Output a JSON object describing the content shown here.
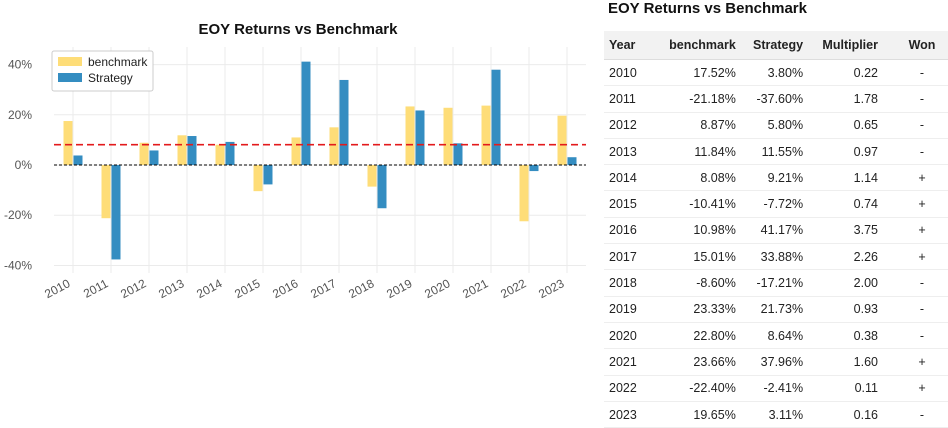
{
  "chart_data": {
    "type": "bar",
    "title": "EOY Returns  vs Benchmark",
    "categories": [
      "2010",
      "2011",
      "2012",
      "2013",
      "2014",
      "2015",
      "2016",
      "2017",
      "2018",
      "2019",
      "2020",
      "2021",
      "2022",
      "2023"
    ],
    "series": [
      {
        "name": "benchmark",
        "color": "#fedd78",
        "values": [
          17.52,
          -21.18,
          8.87,
          11.84,
          8.08,
          -10.41,
          10.98,
          15.01,
          -8.6,
          23.33,
          22.8,
          23.66,
          -22.4,
          19.65
        ]
      },
      {
        "name": "Strategy",
        "color": "#348dc1",
        "values": [
          3.8,
          -37.6,
          5.8,
          11.55,
          9.21,
          -7.72,
          41.17,
          33.88,
          -17.21,
          21.73,
          8.64,
          37.96,
          -2.41,
          3.11
        ]
      }
    ],
    "ylim": [
      -43,
      47
    ],
    "yticks": [
      -40,
      -20,
      0,
      20,
      40
    ],
    "ytick_labels": [
      "-40%",
      "-20%",
      "0%",
      "20%",
      "40%"
    ],
    "mean_line": {
      "value": 8.1,
      "color": "#e31a1c",
      "style": "dashed"
    },
    "zero_line": {
      "value": 0,
      "color": "#000000",
      "style": "dashed"
    },
    "grid": true,
    "legend": "top-left",
    "xlabel": "",
    "ylabel": ""
  },
  "table": {
    "title": "EOY Returns vs Benchmark",
    "columns": [
      "Year",
      "benchmark",
      "Strategy",
      "Multiplier",
      "Won"
    ],
    "rows": [
      {
        "year": "2010",
        "benchmark": "17.52%",
        "strategy": "3.80%",
        "multiplier": "0.22",
        "won": "-"
      },
      {
        "year": "2011",
        "benchmark": "-21.18%",
        "strategy": "-37.60%",
        "multiplier": "1.78",
        "won": "-"
      },
      {
        "year": "2012",
        "benchmark": "8.87%",
        "strategy": "5.80%",
        "multiplier": "0.65",
        "won": "-"
      },
      {
        "year": "2013",
        "benchmark": "11.84%",
        "strategy": "11.55%",
        "multiplier": "0.97",
        "won": "-"
      },
      {
        "year": "2014",
        "benchmark": "8.08%",
        "strategy": "9.21%",
        "multiplier": "1.14",
        "won": "+"
      },
      {
        "year": "2015",
        "benchmark": "-10.41%",
        "strategy": "-7.72%",
        "multiplier": "0.74",
        "won": "+"
      },
      {
        "year": "2016",
        "benchmark": "10.98%",
        "strategy": "41.17%",
        "multiplier": "3.75",
        "won": "+"
      },
      {
        "year": "2017",
        "benchmark": "15.01%",
        "strategy": "33.88%",
        "multiplier": "2.26",
        "won": "+"
      },
      {
        "year": "2018",
        "benchmark": "-8.60%",
        "strategy": "-17.21%",
        "multiplier": "2.00",
        "won": "-"
      },
      {
        "year": "2019",
        "benchmark": "23.33%",
        "strategy": "21.73%",
        "multiplier": "0.93",
        "won": "-"
      },
      {
        "year": "2020",
        "benchmark": "22.80%",
        "strategy": "8.64%",
        "multiplier": "0.38",
        "won": "-"
      },
      {
        "year": "2021",
        "benchmark": "23.66%",
        "strategy": "37.96%",
        "multiplier": "1.60",
        "won": "+"
      },
      {
        "year": "2022",
        "benchmark": "-22.40%",
        "strategy": "-2.41%",
        "multiplier": "0.11",
        "won": "+"
      },
      {
        "year": "2023",
        "benchmark": "19.65%",
        "strategy": "3.11%",
        "multiplier": "0.16",
        "won": "-"
      }
    ]
  }
}
